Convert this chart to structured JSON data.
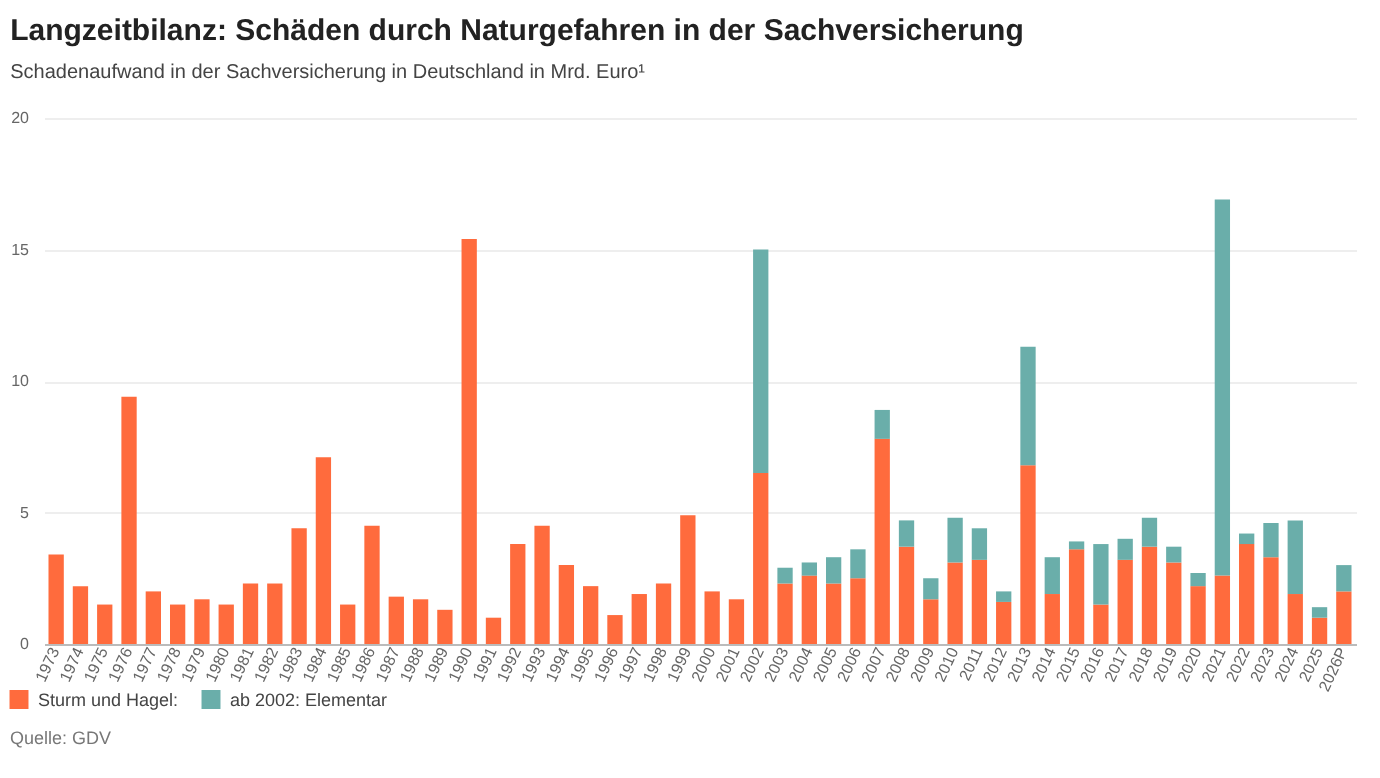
{
  "chart_data": {
    "type": "bar",
    "title": "Langzeitbilanz: Schäden durch Naturgefahren in der Sachversicherung",
    "subtitle": "Schadenaufwand in der Sachversicherung in Deutschland in Mrd. Euro¹",
    "annotations": [
      "Quelle: GDV"
    ],
    "categories": [
      "1973",
      "1974",
      "1975",
      "1976",
      "1977",
      "1978",
      "1979",
      "1980",
      "1981",
      "1982",
      "1983",
      "1984",
      "1985",
      "1986",
      "1987",
      "1988",
      "1989",
      "1990",
      "1991",
      "1992",
      "1993",
      "1994",
      "1995",
      "1996",
      "1997",
      "1998",
      "1999",
      "2000",
      "2001",
      "2002",
      "2003",
      "2004",
      "2005",
      "2006",
      "2007",
      "2008",
      "2009",
      "2010",
      "2011",
      "2012",
      "2013",
      "2014",
      "2015",
      "2016",
      "2017",
      "2018",
      "2019",
      "2020",
      "2021",
      "2022",
      "2023",
      "2024",
      "2025",
      "2026P"
    ],
    "stacked": true,
    "ylim": [
      0,
      20
    ],
    "yticks": [
      0,
      5,
      10,
      15,
      20
    ],
    "grid": "y",
    "legend": "bottom left",
    "series": [
      {
        "name": "Sturm und Hagel:",
        "color": "#ff6b3d",
        "values": [
          3.4,
          2.2,
          1.5,
          9.4,
          2.0,
          1.5,
          1.7,
          1.5,
          2.3,
          2.3,
          4.4,
          7.1,
          1.5,
          4.5,
          1.8,
          1.7,
          1.3,
          15.4,
          1.0,
          3.8,
          4.5,
          3.0,
          2.2,
          1.1,
          1.9,
          2.3,
          4.9,
          2.0,
          1.7,
          6.5,
          2.3,
          2.6,
          2.3,
          2.5,
          7.8,
          3.7,
          1.7,
          3.1,
          3.2,
          1.6,
          6.8,
          1.9,
          3.6,
          1.5,
          3.2,
          3.7,
          3.1,
          2.2,
          2.6,
          3.8,
          3.3,
          1.9,
          1.0,
          2.0
        ]
      },
      {
        "name": "ab 2002: Elementar",
        "color": "#6aaeaa",
        "values": [
          null,
          null,
          null,
          null,
          null,
          null,
          null,
          null,
          null,
          null,
          null,
          null,
          null,
          null,
          null,
          null,
          null,
          null,
          null,
          null,
          null,
          null,
          null,
          null,
          null,
          null,
          null,
          null,
          null,
          8.5,
          0.6,
          0.5,
          1.0,
          1.1,
          1.1,
          1.0,
          0.8,
          1.7,
          1.2,
          0.4,
          4.5,
          1.4,
          0.3,
          2.3,
          0.8,
          1.1,
          0.6,
          0.5,
          14.3,
          0.4,
          1.3,
          2.8,
          0.4,
          1.0
        ]
      }
    ]
  }
}
